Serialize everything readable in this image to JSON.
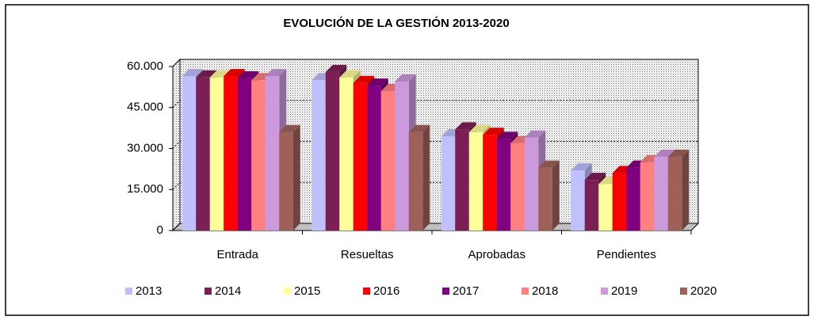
{
  "chart_data": {
    "type": "bar3d",
    "title": "EVOLUCIÓN DE LA GESTIÓN 2013-2020",
    "categories": [
      "Entrada",
      "Resueltas",
      "Aprobadas",
      "Pendientes"
    ],
    "series": [
      {
        "name": "2013",
        "color": "#c0c0ff",
        "values": [
          56500,
          55000,
          34500,
          22000
        ]
      },
      {
        "name": "2014",
        "color": "#7b1f55",
        "values": [
          56000,
          58000,
          37000,
          18500
        ]
      },
      {
        "name": "2015",
        "color": "#ffff99",
        "values": [
          56000,
          56000,
          36000,
          17000
        ]
      },
      {
        "name": "2016",
        "color": "#ff0000",
        "values": [
          56500,
          54000,
          35000,
          21000
        ]
      },
      {
        "name": "2017",
        "color": "#800080",
        "values": [
          55700,
          53000,
          33500,
          23000
        ]
      },
      {
        "name": "2018",
        "color": "#ff8080",
        "values": [
          55000,
          51000,
          32000,
          25000
        ]
      },
      {
        "name": "2019",
        "color": "#cc99dd",
        "values": [
          56500,
          54500,
          34000,
          27000
        ]
      },
      {
        "name": "2020",
        "color": "#a0605a",
        "values": [
          36000,
          36000,
          23000,
          27000
        ]
      }
    ],
    "ylim": [
      0,
      60000
    ],
    "yticks": [
      0,
      {
        "value": 15000,
        "label": "15.000"
      },
      {
        "value": 30000,
        "label": "30.000"
      },
      {
        "value": 45000,
        "label": "45.000"
      },
      {
        "value": 60000,
        "label": "60.000"
      }
    ],
    "grid": true,
    "legend": "bottom"
  }
}
